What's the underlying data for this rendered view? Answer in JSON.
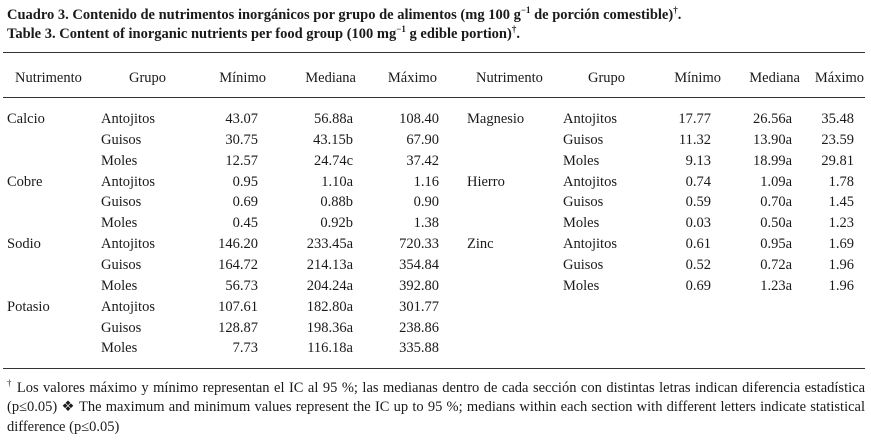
{
  "title_es": {
    "text": "Cuadro 3. Contenido de nutrimentos inorgánicos por grupo de alimentos (mg 100 g",
    "exp": "−1",
    "tail": " de porción comestible)",
    "dagger": "†",
    "end": "."
  },
  "title_en": {
    "text": "Table 3.  Content of inorganic nutrients per food group (100 mg",
    "exp": "−1",
    "tail": " g edible portion)",
    "dagger": "†",
    "end": "."
  },
  "headers": [
    "Nutrimento",
    "Grupo",
    "Mínimo",
    "Mediana",
    "Máximo"
  ],
  "left_rows": [
    {
      "nutrient": "Calcio",
      "group": "Antojitos",
      "min": "43.07",
      "median": "56.88a",
      "max": "108.40"
    },
    {
      "nutrient": "",
      "group": "Guisos",
      "min": "30.75",
      "median": "43.15b",
      "max": "67.90"
    },
    {
      "nutrient": "",
      "group": "Moles",
      "min": "12.57",
      "median": "24.74c",
      "max": "37.42"
    },
    {
      "nutrient": "Cobre",
      "group": "Antojitos",
      "min": "0.95",
      "median": "1.10a",
      "max": "1.16"
    },
    {
      "nutrient": "",
      "group": "Guisos",
      "min": "0.69",
      "median": "0.88b",
      "max": "0.90"
    },
    {
      "nutrient": "",
      "group": "Moles",
      "min": "0.45",
      "median": "0.92b",
      "max": "1.38"
    },
    {
      "nutrient": "Sodio",
      "group": "Antojitos",
      "min": "146.20",
      "median": "233.45a",
      "max": "720.33"
    },
    {
      "nutrient": "",
      "group": "Guisos",
      "min": "164.72",
      "median": "214.13a",
      "max": "354.84"
    },
    {
      "nutrient": "",
      "group": "Moles",
      "min": "56.73",
      "median": "204.24a",
      "max": "392.80"
    },
    {
      "nutrient": "Potasio",
      "group": "Antojitos",
      "min": "107.61",
      "median": "182.80a",
      "max": "301.77"
    },
    {
      "nutrient": "",
      "group": "Guisos",
      "min": "128.87",
      "median": "198.36a",
      "max": "238.86"
    },
    {
      "nutrient": "",
      "group": "Moles",
      "min": "7.73",
      "median": "116.18a",
      "max": "335.88"
    }
  ],
  "right_rows": [
    {
      "nutrient": "Magnesio",
      "group": "Antojitos",
      "min": "17.77",
      "median": "26.56a",
      "max": "35.48"
    },
    {
      "nutrient": "",
      "group": "Guisos",
      "min": "11.32",
      "median": "13.90a",
      "max": "23.59"
    },
    {
      "nutrient": "",
      "group": "Moles",
      "min": "9.13",
      "median": "18.99a",
      "max": "29.81"
    },
    {
      "nutrient": "Hierro",
      "group": "Antojitos",
      "min": "0.74",
      "median": "1.09a",
      "max": "1.78"
    },
    {
      "nutrient": "",
      "group": "Guisos",
      "min": "0.59",
      "median": "0.70a",
      "max": "1.45"
    },
    {
      "nutrient": "",
      "group": "Moles",
      "min": "0.03",
      "median": "0.50a",
      "max": "1.23"
    },
    {
      "nutrient": "Zinc",
      "group": "Antojitos",
      "min": "0.61",
      "median": "0.95a",
      "max": "1.69"
    },
    {
      "nutrient": "",
      "group": "Guisos",
      "min": "0.52",
      "median": "0.72a",
      "max": "1.96"
    },
    {
      "nutrient": "",
      "group": "Moles",
      "min": "0.69",
      "median": "1.23a",
      "max": "1.96"
    }
  ],
  "footnote": {
    "dagger": "†",
    "text": " Los valores máximo y mínimo representan el IC al 95 %; las medianas dentro de cada sección con distintas letras indican diferencia estadística (p≤0.05) ❖ The maximum and minimum values represent the IC up to 95 %; medians within each section with different letters indicate statistical difference (p≤0.05)"
  }
}
